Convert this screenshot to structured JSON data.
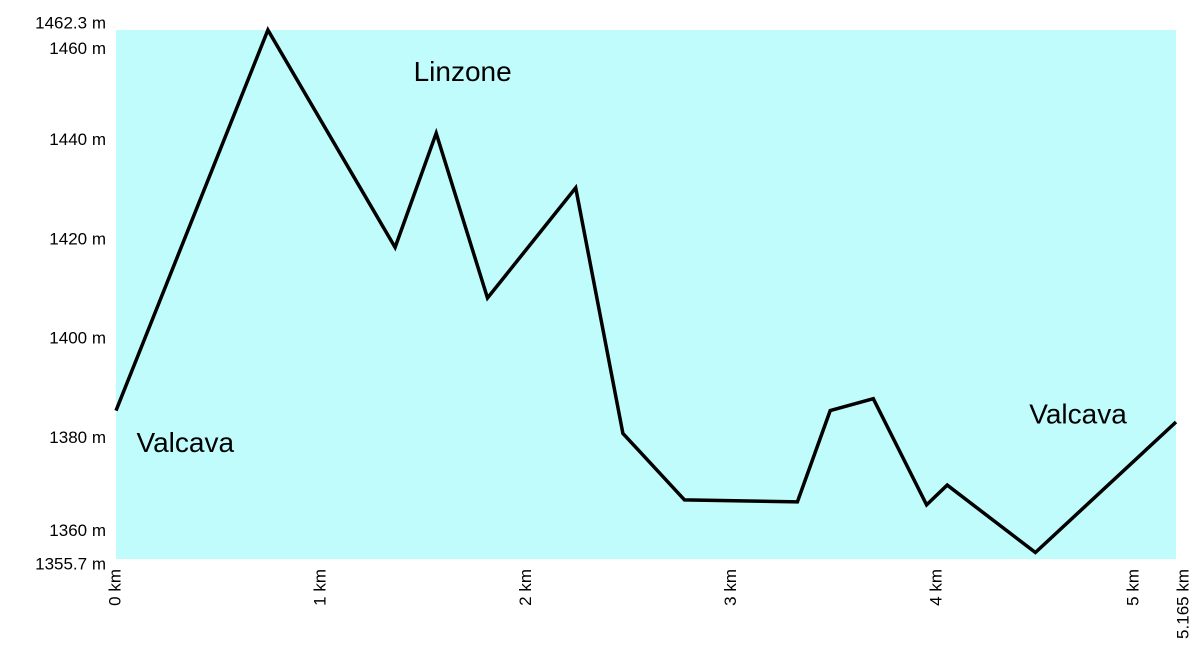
{
  "chart_data": {
    "type": "line",
    "title": "",
    "xlabel": "",
    "ylabel": "",
    "xlim": [
      0,
      5.165
    ],
    "ylim": [
      1355.7,
      1462.3
    ],
    "grid": false,
    "legend": "none",
    "colors": {
      "plot_background": "#c0fcfc",
      "line": "#000000"
    },
    "series": [
      {
        "x": [
          0,
          0.74,
          1.36,
          1.56,
          1.81,
          2.24,
          2.47,
          2.77,
          3.32,
          3.48,
          3.69,
          3.95,
          4.05,
          4.48,
          5.165
        ],
        "y": [
          1385.6,
          1462.3,
          1418.5,
          1441.5,
          1408.3,
          1430.5,
          1381.0,
          1367.6,
          1367.2,
          1385.6,
          1388.0,
          1366.6,
          1370.6,
          1357.0,
          1383.3
        ]
      }
    ],
    "y_ticks": [
      {
        "value": 1355.7,
        "label": "1355.7 m"
      },
      {
        "value": 1360,
        "label": "1360 m"
      },
      {
        "value": 1380,
        "label": "1380 m"
      },
      {
        "value": 1400,
        "label": "1400 m"
      },
      {
        "value": 1420,
        "label": "1420 m"
      },
      {
        "value": 1440,
        "label": "1440 m"
      },
      {
        "value": 1460,
        "label": "1460 m"
      },
      {
        "value": 1462.3,
        "label": "1462.3 m"
      }
    ],
    "x_ticks": [
      {
        "value": 0,
        "label": "0 km"
      },
      {
        "value": 1,
        "label": "1 km"
      },
      {
        "value": 2,
        "label": "2 km"
      },
      {
        "value": 3,
        "label": "3 km"
      },
      {
        "value": 4,
        "label": "4 km"
      },
      {
        "value": 5,
        "label": "5 km"
      },
      {
        "value": 5.165,
        "label": "5.165 km"
      }
    ],
    "annotations": [
      {
        "text": "Valcava",
        "x": 0.1,
        "y": 1378.8
      },
      {
        "text": "Linzone",
        "x": 1.45,
        "y": 1453.5
      },
      {
        "text": "Valcava",
        "x": 4.45,
        "y": 1384.5
      }
    ]
  }
}
